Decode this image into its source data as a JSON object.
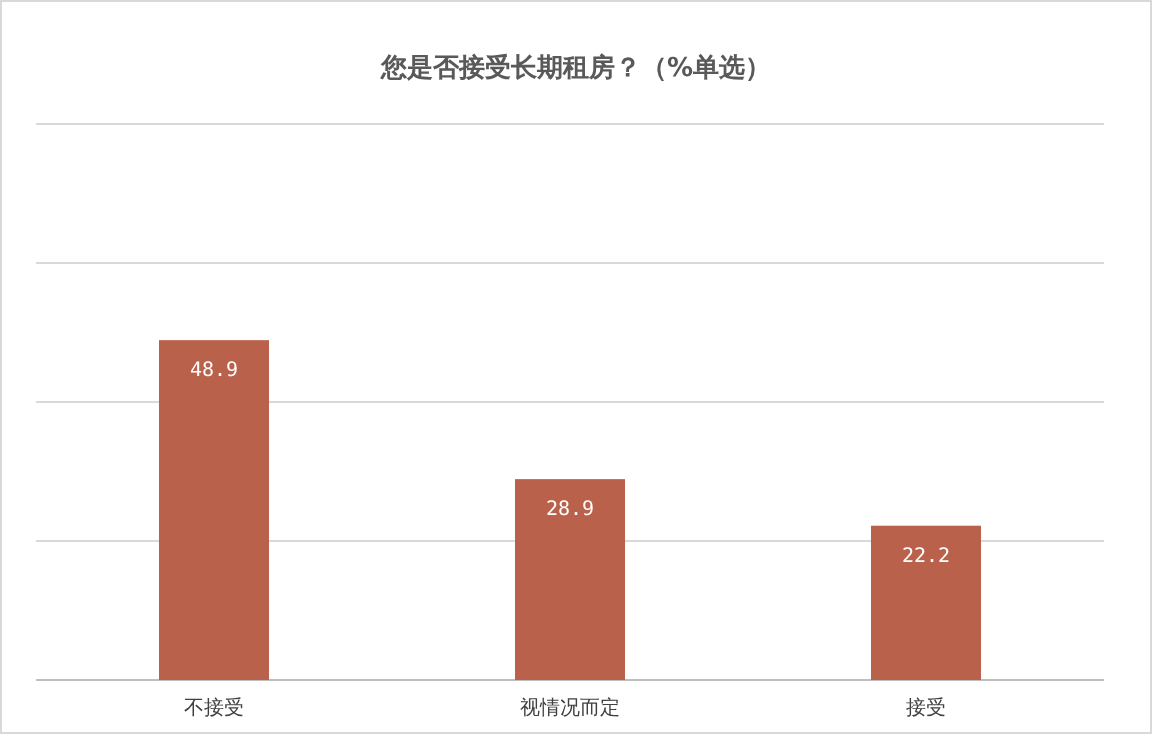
{
  "chart_data": {
    "type": "bar",
    "title": "您是否接受长期租房？（%单选）",
    "categories": [
      "不接受",
      "视情况而定",
      "接受"
    ],
    "values": [
      48.9,
      28.9,
      22.2
    ],
    "color": "#b9614a",
    "ylim": [
      0,
      80
    ],
    "yticks": [
      {
        "value": 0,
        "label": null
      },
      {
        "value": 20,
        "label": null
      },
      {
        "value": 40,
        "label": null
      },
      {
        "value": 60,
        "label": null
      },
      {
        "value": 80,
        "label": null
      }
    ],
    "grid": "y",
    "tick_labels": "x",
    "data_labels": true
  }
}
